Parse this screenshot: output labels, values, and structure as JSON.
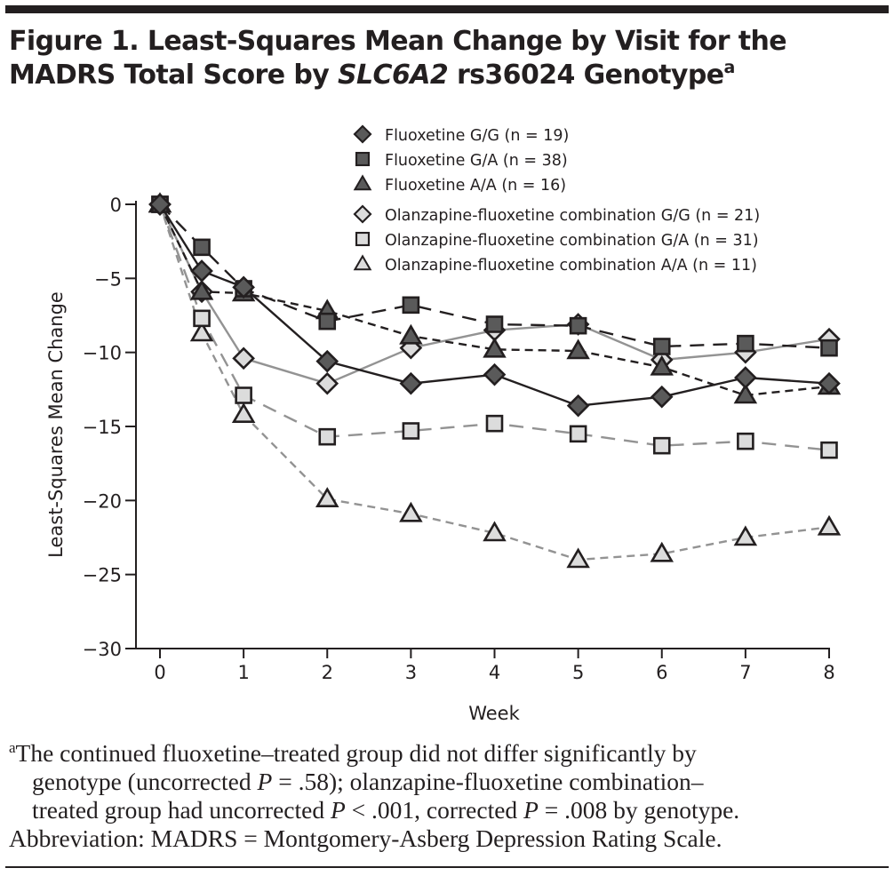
{
  "figure": {
    "title_prefix": "Figure 1. Least-Squares Mean Change by Visit for the MADRS Total Score by ",
    "title_gene": "SLC6A2",
    "title_suffix": " rs36024 Genotype",
    "title_sup": "a",
    "footnote": {
      "sup": "a",
      "line1": "The continued fluoxetine–treated group did not differ significantly by",
      "line2_a": "genotype (uncorrected ",
      "line2_p": "P",
      "line2_b": " = .58); olanzapine-fluoxetine combination–",
      "line3_a": "treated group had uncorrected ",
      "line3_p1": "P",
      "line3_b": " < .001, corrected ",
      "line3_p2": "P",
      "line3_c": " = .008 by genotype.",
      "line4": "Abbreviation: MADRS = Montgomery-Asberg Depression Rating Scale."
    }
  },
  "chart_data": {
    "type": "line",
    "title": "Least-Squares Mean Change by Visit for the MADRS Total Score by SLC6A2 rs36024 Genotype",
    "xlabel": "Week",
    "ylabel": "Least-Squares Mean Change",
    "xlim": [
      0,
      8
    ],
    "ylim": [
      -30,
      0
    ],
    "xticks": [
      0,
      1,
      2,
      3,
      4,
      5,
      6,
      7,
      8
    ],
    "yticks": [
      0,
      -5,
      -10,
      -15,
      -20,
      -25,
      -30
    ],
    "ytick_labels": [
      "0",
      "−5",
      "−10",
      "−15",
      "−20",
      "−25",
      "−30"
    ],
    "grid": false,
    "legend_position": "top-right",
    "x": [
      0,
      0.5,
      1,
      2,
      3,
      4,
      5,
      6,
      7,
      8
    ],
    "series": [
      {
        "name": "Fluoxetine G/G (n = 19)",
        "marker": "diamond",
        "fill": "#5a5a5a",
        "line_color": "#231f20",
        "line_style": "solid",
        "values": [
          0,
          -4.5,
          -5.6,
          -10.6,
          -12.1,
          -11.5,
          -13.6,
          -13.0,
          -11.7,
          -12.1
        ]
      },
      {
        "name": "Fluoxetine G/A (n = 38)",
        "marker": "square",
        "fill": "#5a5a5a",
        "line_color": "#231f20",
        "line_style": "long-dash",
        "values": [
          0,
          -2.9,
          -5.7,
          -7.9,
          -6.8,
          -8.1,
          -8.2,
          -9.6,
          -9.4,
          -9.7
        ]
      },
      {
        "name": "Fluoxetine A/A (n = 16)",
        "marker": "triangle",
        "fill": "#5a5a5a",
        "line_color": "#231f20",
        "line_style": "short-dash",
        "values": [
          0,
          -5.9,
          -6.0,
          -7.2,
          -8.9,
          -9.8,
          -9.9,
          -11.0,
          -12.9,
          -12.3
        ]
      },
      {
        "name": "Olanzapine-fluoxetine combination G/G (n = 21)",
        "marker": "diamond",
        "fill": "#dcdcdc",
        "line_color": "#939393",
        "line_style": "solid",
        "values": [
          0,
          -5.9,
          -10.4,
          -12.1,
          -9.7,
          -8.5,
          -8.1,
          -10.5,
          -10.0,
          -9.1
        ]
      },
      {
        "name": "Olanzapine-fluoxetine combination G/A (n = 31)",
        "marker": "square",
        "fill": "#dcdcdc",
        "line_color": "#939393",
        "line_style": "long-dash",
        "values": [
          0,
          -7.7,
          -12.9,
          -15.7,
          -15.3,
          -14.8,
          -15.5,
          -16.3,
          -16.0,
          -16.6
        ]
      },
      {
        "name": "Olanzapine-fluoxetine combination A/A (n = 11)",
        "marker": "triangle",
        "fill": "#dcdcdc",
        "line_color": "#939393",
        "line_style": "short-dash",
        "values": [
          0,
          -8.7,
          -14.2,
          -19.9,
          -20.9,
          -22.2,
          -24.0,
          -23.6,
          -22.5,
          -21.8
        ]
      }
    ]
  }
}
